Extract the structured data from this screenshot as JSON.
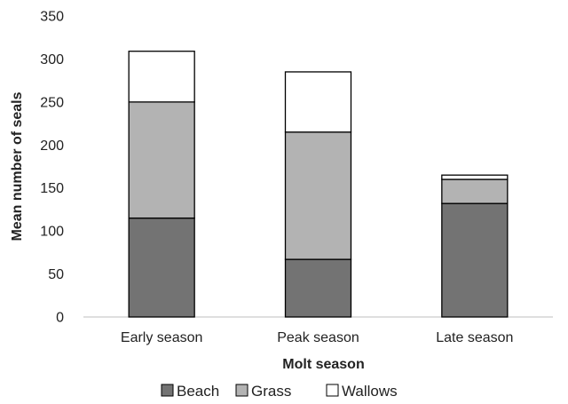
{
  "chart_data": {
    "type": "bar",
    "stacked": true,
    "title": "",
    "xlabel": "Molt season",
    "ylabel": "Mean number of seals",
    "categories": [
      "Early season",
      "Peak season",
      "Late season"
    ],
    "series": [
      {
        "name": "Beach",
        "values": [
          115,
          67,
          132
        ],
        "color": "#737373"
      },
      {
        "name": "Grass",
        "values": [
          135,
          148,
          28
        ],
        "color": "#b3b3b3"
      },
      {
        "name": "Wallows",
        "values": [
          59,
          70,
          5
        ],
        "color": "#ffffff"
      }
    ],
    "ylim": [
      0,
      350
    ],
    "yticks": [
      0,
      50,
      100,
      150,
      200,
      250,
      300,
      350
    ],
    "grid": false,
    "legend": "bottom-center"
  }
}
